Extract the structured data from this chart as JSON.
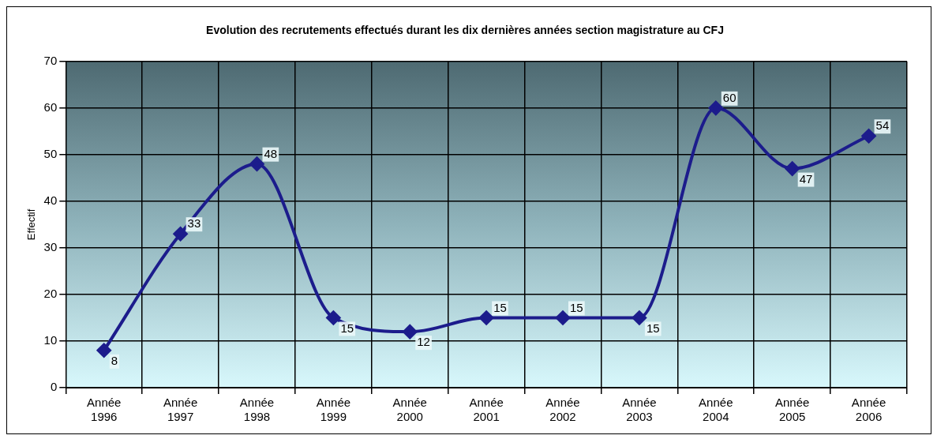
{
  "chart_data": {
    "type": "line",
    "title": "Evolution des recrutements effectués durant les dix dernières années section magistrature au CFJ",
    "ylabel": "Effectif",
    "categories": [
      "Année 1996",
      "Année 1997",
      "Année 1998",
      "Année 1999",
      "Année 2000",
      "Année 2001",
      "Année 2002",
      "Année 2003",
      "Année 2004",
      "Année 2005",
      "Année 2006"
    ],
    "series": [
      {
        "color": "#1c1c8c",
        "values": [
          8,
          33,
          48,
          15,
          12,
          15,
          15,
          15,
          60,
          47,
          54
        ]
      }
    ],
    "ylim": [
      0,
      70
    ],
    "yticks": [
      0,
      10,
      20,
      30,
      40,
      50,
      60,
      70
    ],
    "grid": true,
    "legend": false,
    "marker": "diamond",
    "line_style": "solid",
    "data_labels": true
  }
}
